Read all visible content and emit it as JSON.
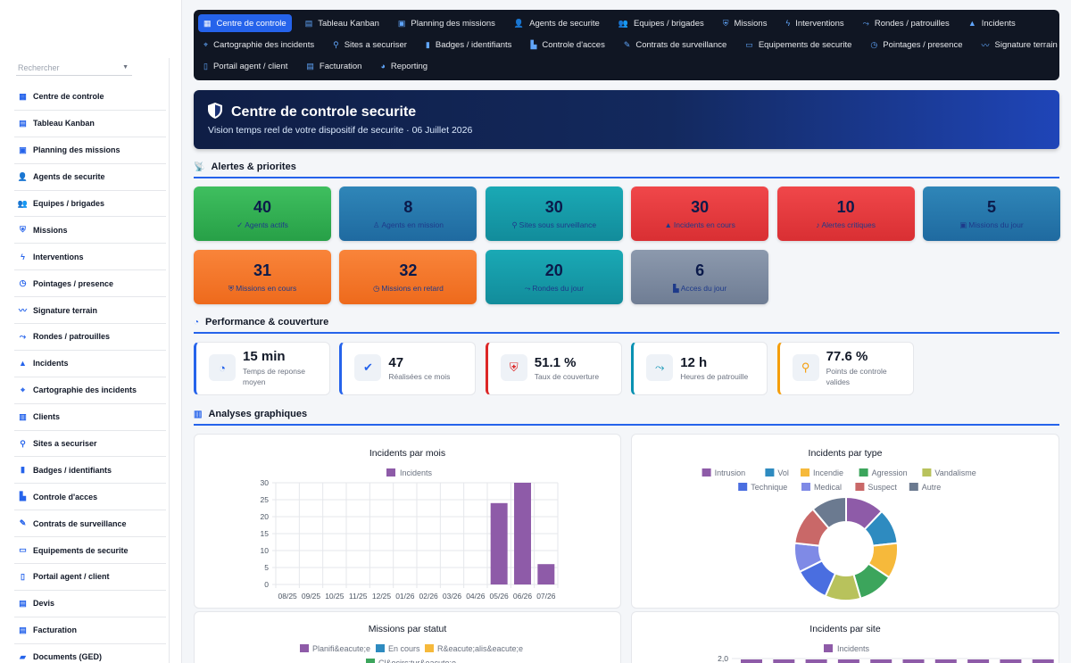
{
  "sidebar": {
    "search_placeholder": "Rechercher",
    "items": [
      {
        "label": "Centre de controle",
        "icon": "grid-icon"
      },
      {
        "label": "Tableau Kanban",
        "icon": "kanban-icon"
      },
      {
        "label": "Planning des missions",
        "icon": "calendar-icon"
      },
      {
        "label": "Agents de securite",
        "icon": "user-shield-icon"
      },
      {
        "label": "Equipes / brigades",
        "icon": "users-icon"
      },
      {
        "label": "Missions",
        "icon": "shield-icon"
      },
      {
        "label": "Interventions",
        "icon": "bolt-icon"
      },
      {
        "label": "Pointages / presence",
        "icon": "clock-icon"
      },
      {
        "label": "Signature terrain",
        "icon": "signature-icon"
      },
      {
        "label": "Rondes / patrouilles",
        "icon": "route-icon"
      },
      {
        "label": "Incidents",
        "icon": "warning-icon"
      },
      {
        "label": "Cartographie des incidents",
        "icon": "map-icon"
      },
      {
        "label": "Clients",
        "icon": "building-icon"
      },
      {
        "label": "Sites a securiser",
        "icon": "pin-icon"
      },
      {
        "label": "Badges / identifiants",
        "icon": "badge-icon"
      },
      {
        "label": "Controle d'acces",
        "icon": "door-icon"
      },
      {
        "label": "Contrats de surveillance",
        "icon": "contract-icon"
      },
      {
        "label": "Equipements de securite",
        "icon": "toolbox-icon"
      },
      {
        "label": "Portail agent / client",
        "icon": "mobile-icon"
      },
      {
        "label": "Devis",
        "icon": "file-icon"
      },
      {
        "label": "Facturation",
        "icon": "invoice-icon"
      },
      {
        "label": "Documents (GED)",
        "icon": "folder-icon"
      }
    ]
  },
  "topnav": {
    "rows": [
      [
        {
          "label": "Centre de controle",
          "icon": "grid-icon",
          "active": true
        },
        {
          "label": "Tableau Kanban",
          "icon": "kanban-icon"
        },
        {
          "label": "Planning des missions",
          "icon": "calendar-icon"
        },
        {
          "label": "Agents de securite",
          "icon": "user-shield-icon"
        },
        {
          "label": "Equipes / brigades",
          "icon": "users-icon"
        },
        {
          "label": "Missions",
          "icon": "shield-icon"
        },
        {
          "label": "Interventions",
          "icon": "bolt-icon"
        },
        {
          "label": "Rondes / patrouilles",
          "icon": "route-icon"
        },
        {
          "label": "Incidents",
          "icon": "warning-icon"
        }
      ],
      [
        {
          "label": "Cartographie des incidents",
          "icon": "map-icon"
        },
        {
          "label": "Sites a securiser",
          "icon": "pin-icon"
        },
        {
          "label": "Badges / identifiants",
          "icon": "badge-icon"
        },
        {
          "label": "Controle d'acces",
          "icon": "door-icon"
        },
        {
          "label": "Contrats de surveillance",
          "icon": "contract-icon"
        },
        {
          "label": "Equipements de securite",
          "icon": "toolbox-icon"
        },
        {
          "label": "Pointages / presence",
          "icon": "clock-icon"
        },
        {
          "label": "Signature terrain",
          "icon": "signature-icon"
        }
      ],
      [
        {
          "label": "Portail agent / client",
          "icon": "mobile-icon"
        },
        {
          "label": "Facturation",
          "icon": "invoice-icon"
        },
        {
          "label": "Reporting",
          "icon": "chart-icon"
        }
      ]
    ]
  },
  "hero": {
    "title": "Centre de controle securite",
    "subtitle": "Vision temps reel de votre dispositif de securite · 06 Juillet 2026"
  },
  "sections": {
    "alerts": "Alertes & priorites",
    "performance": "Performance & couverture",
    "analytics": "Analyses graphiques"
  },
  "kpis": [
    {
      "value": "40",
      "label": "Agents actifs",
      "icon": "user-check-icon",
      "gradient": [
        "#3fbf5f",
        "#27a047"
      ]
    },
    {
      "value": "8",
      "label": "Agents en mission",
      "icon": "walking-icon",
      "gradient": [
        "#2f86b8",
        "#1f6aa0"
      ]
    },
    {
      "value": "30",
      "label": "Sites sous surveillance",
      "icon": "pin-icon",
      "gradient": [
        "#1aa9b5",
        "#128c9b"
      ]
    },
    {
      "value": "30",
      "label": "Incidents en cours",
      "icon": "warning-icon",
      "gradient": [
        "#f0474a",
        "#d92f33"
      ]
    },
    {
      "value": "10",
      "label": "Alertes critiques",
      "icon": "bell-icon",
      "gradient": [
        "#f0474a",
        "#d92f33"
      ]
    },
    {
      "value": "5",
      "label": "Missions du jour",
      "icon": "calendar-icon",
      "gradient": [
        "#2f86b8",
        "#1f6aa0"
      ]
    },
    {
      "value": "31",
      "label": "Missions en cours",
      "icon": "shield-icon",
      "gradient": [
        "#f9843a",
        "#ee6a1c"
      ]
    },
    {
      "value": "32",
      "label": "Missions en retard",
      "icon": "clock-icon",
      "gradient": [
        "#f9843a",
        "#ee6a1c"
      ]
    },
    {
      "value": "20",
      "label": "Rondes du jour",
      "icon": "route-icon",
      "gradient": [
        "#1aa9b5",
        "#128c9b"
      ]
    },
    {
      "value": "6",
      "label": "Acces du jour",
      "icon": "door-icon",
      "gradient": [
        "#8c99ad",
        "#6f7d94"
      ]
    }
  ],
  "perf": [
    {
      "value": "15 min",
      "label": "Temps de reponse moyen",
      "icon": "stopwatch-icon",
      "border": "#2563eb",
      "icon_color": "#2563eb"
    },
    {
      "value": "47",
      "label": "Réalisées ce mois",
      "icon": "check-circle-icon",
      "border": "#2563eb",
      "icon_color": "#2563eb"
    },
    {
      "value": "51.1 %",
      "label": "Taux de couverture",
      "icon": "shield-icon",
      "border": "#dc2626",
      "icon_color": "#dc2626"
    },
    {
      "value": "12 h",
      "label": "Heures de patrouille",
      "icon": "route-icon",
      "border": "#0891b2",
      "icon_color": "#0891b2"
    },
    {
      "value": "77.6 %",
      "label": "Points de controle valides",
      "icon": "pin-icon",
      "border": "#f59e0b",
      "icon_color": "#f59e0b"
    }
  ],
  "chart_data": [
    {
      "type": "bar",
      "title": "Incidents par mois",
      "categories": [
        "08/25",
        "09/25",
        "10/25",
        "11/25",
        "12/25",
        "01/26",
        "02/26",
        "03/26",
        "04/26",
        "05/26",
        "06/26",
        "07/26"
      ],
      "series": [
        {
          "name": "Incidents",
          "values": [
            0,
            0,
            0,
            0,
            0,
            0,
            0,
            0,
            0,
            24,
            30,
            6
          ],
          "color": "#8e5ba8"
        }
      ],
      "yticks": [
        0,
        5,
        10,
        15,
        20,
        25,
        30
      ],
      "ylim": [
        0,
        30
      ],
      "grid": true,
      "legend": "top"
    },
    {
      "type": "pie",
      "title": "Incidents par type",
      "legend": "top",
      "slices": [
        {
          "name": "Intrusion",
          "value": 12,
          "color": "#8e5ba8"
        },
        {
          "name": "Vol",
          "value": 11,
          "color": "#2e8bc0"
        },
        {
          "name": "Incendie",
          "value": 11,
          "color": "#f6b93b"
        },
        {
          "name": "Agression",
          "value": 11,
          "color": "#3ca55c"
        },
        {
          "name": "Vandalisme",
          "value": 11,
          "color": "#b8c25c"
        },
        {
          "name": "Technique",
          "value": 11,
          "color": "#4a6ee0"
        },
        {
          "name": "Medical",
          "value": 9,
          "color": "#7f8ae6"
        },
        {
          "name": "Suspect",
          "value": 12,
          "color": "#c96868"
        },
        {
          "name": "Autre",
          "value": 11,
          "color": "#6b7a90"
        }
      ]
    },
    {
      "type": "bar",
      "title": "Missions par statut",
      "legend": "top",
      "series": [
        {
          "name": "Planifi&eacute;e",
          "color": "#8e5ba8"
        },
        {
          "name": "En cours",
          "color": "#2e8bc0"
        },
        {
          "name": "R&eacute;alis&eacute;e",
          "color": "#f6b93b"
        },
        {
          "name": "Cl&ocirc;tur&eacute;e",
          "color": "#3ca55c"
        }
      ]
    },
    {
      "type": "bar",
      "title": "Incidents par site",
      "legend": "top",
      "series": [
        {
          "name": "Incidents",
          "color": "#8e5ba8"
        }
      ],
      "ytick_top": "2,0",
      "ylim": [
        0,
        2
      ]
    }
  ]
}
